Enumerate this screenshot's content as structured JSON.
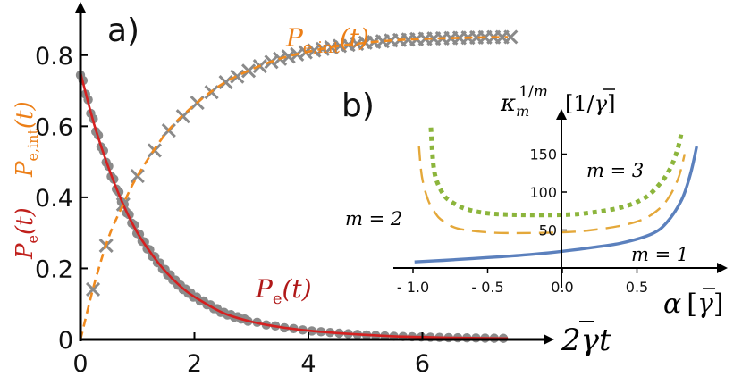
{
  "chart_data": [
    {
      "panel": "a)",
      "type": "line",
      "xlabel": "2γ̄t",
      "ylabel_series": [
        "Pe(t)",
        "Pe,int(t)"
      ],
      "xlim": [
        0,
        8
      ],
      "ylim": [
        0,
        0.9
      ],
      "xticks": [
        0,
        2,
        4,
        6
      ],
      "yticks": [
        0,
        0.2,
        0.4,
        0.6,
        0.8
      ],
      "xtick_labels": [
        "0",
        "2",
        "4",
        "6"
      ],
      "ytick_labels": [
        "0",
        "0.2",
        "0.4",
        "0.6",
        "0.8"
      ],
      "grid": false,
      "series": [
        {
          "name": "Pe(t)",
          "label_text": "Pe(t)",
          "color": "#d62020",
          "style": "solid",
          "markers": "gray dots",
          "marker_color": "#8a8a8a",
          "x": [
            0,
            0.25,
            0.5,
            0.75,
            1.0,
            1.25,
            1.5,
            1.75,
            2.0,
            2.5,
            3.0,
            3.5,
            4.0,
            4.5,
            5.0,
            5.5,
            6.0,
            6.5,
            7.0,
            7.5
          ],
          "values": [
            0.75,
            0.6,
            0.48,
            0.38,
            0.3,
            0.24,
            0.19,
            0.15,
            0.12,
            0.075,
            0.05,
            0.035,
            0.025,
            0.018,
            0.013,
            0.009,
            0.007,
            0.005,
            0.004,
            0.003
          ]
        },
        {
          "name": "Pe,int(t)",
          "label_text": "Pe,int(t)",
          "color": "#f08a1e",
          "style": "dashed",
          "markers": "gray crosses",
          "marker_color": "#8a8a8a",
          "x": [
            0,
            0.25,
            0.5,
            0.75,
            1.0,
            1.5,
            2.0,
            2.5,
            3.0,
            3.5,
            4.0,
            4.5,
            5.0,
            5.5,
            6.0,
            6.5,
            7.0,
            7.5
          ],
          "values": [
            0,
            0.16,
            0.29,
            0.38,
            0.46,
            0.58,
            0.66,
            0.72,
            0.76,
            0.79,
            0.81,
            0.825,
            0.835,
            0.842,
            0.846,
            0.848,
            0.85,
            0.851
          ]
        }
      ]
    },
    {
      "panel": "b)",
      "type": "line",
      "xlabel": "α [γ̄]",
      "ylabel": "κm^(1/m) [1/γ̄]",
      "xlim": [
        -1.0,
        1.0
      ],
      "ylim": [
        0,
        200
      ],
      "xticks": [
        -1.0,
        -0.5,
        0,
        0.5
      ],
      "yticks": [
        50,
        100,
        150
      ],
      "xtick_labels": [
        "- 1.0",
        "- 0.5",
        "0.0",
        "0.5"
      ],
      "ytick_labels": [
        "50",
        "100",
        "150"
      ],
      "grid": false,
      "series": [
        {
          "name": "m = 1",
          "color": "#5b80bd",
          "style": "solid",
          "x": [
            -0.99,
            -0.8,
            -0.6,
            -0.4,
            -0.2,
            0.0,
            0.2,
            0.4,
            0.6,
            0.7,
            0.8,
            0.86,
            0.9
          ],
          "values": [
            8,
            10,
            12.5,
            15,
            18,
            22,
            27,
            33,
            45,
            60,
            90,
            125,
            160
          ]
        },
        {
          "name": "m = 2",
          "color": "#e4a83a",
          "style": "dashed",
          "x": [
            -0.96,
            -0.94,
            -0.9,
            -0.85,
            -0.8,
            -0.7,
            -0.5,
            -0.3,
            0.0,
            0.2,
            0.4,
            0.55,
            0.65,
            0.72,
            0.78,
            0.82
          ],
          "values": [
            160,
            120,
            90,
            72,
            62,
            52,
            47,
            46,
            47,
            50,
            56,
            65,
            78,
            95,
            120,
            150
          ]
        },
        {
          "name": "m = 3",
          "color": "#8cb53c",
          "style": "dotted",
          "x": [
            -0.88,
            -0.87,
            -0.85,
            -0.8,
            -0.75,
            -0.65,
            -0.5,
            -0.3,
            0.0,
            0.2,
            0.4,
            0.55,
            0.65,
            0.72,
            0.77,
            0.8
          ],
          "values": [
            185,
            150,
            120,
            98,
            88,
            78,
            72,
            70,
            70,
            73,
            80,
            92,
            110,
            130,
            155,
            180
          ]
        }
      ],
      "annotations": [
        "m = 1",
        "m = 2",
        "m = 3"
      ]
    }
  ]
}
